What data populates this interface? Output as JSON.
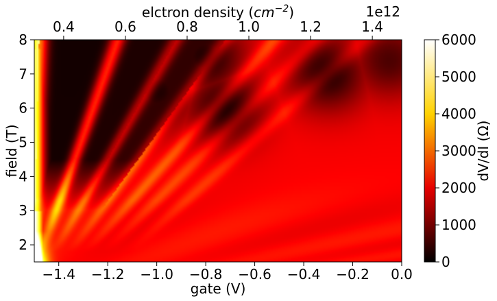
{
  "chart_data": {
    "type": "heatmap",
    "xlabel": "gate (V)",
    "ylabel": "field (T)",
    "top_xlabel_prefix": "elctron density (",
    "top_xlabel_unit_base": "cm",
    "top_xlabel_unit_exp": "−2",
    "top_xlabel_suffix": ")",
    "top_axis_multiplier": "1e12",
    "colorbar_label": "dV/dI (Ω)",
    "xlim": [
      -1.5,
      0.0
    ],
    "ylim": [
      1.5,
      8.0
    ],
    "xticks": [
      -1.4,
      -1.2,
      -1.0,
      -0.8,
      -0.6,
      -0.4,
      -0.2,
      0.0
    ],
    "xtick_labels": [
      "−1.4",
      "−1.2",
      "−1.0",
      "−0.8",
      "−0.6",
      "−0.4",
      "−0.2",
      "0.0"
    ],
    "yticks": [
      2,
      3,
      4,
      5,
      6,
      7,
      8
    ],
    "ytick_labels": [
      "2",
      "3",
      "4",
      "5",
      "6",
      "7",
      "8"
    ],
    "top_ticks": [
      0.4,
      0.6,
      0.8,
      1.0,
      1.2,
      1.4
    ],
    "top_tick_labels": [
      "0.4",
      "0.6",
      "0.8",
      "1.0",
      "1.2",
      "1.4"
    ],
    "top_axis_gate_at_density": [
      [
        0.4,
        -1.38
      ],
      [
        1.4,
        -0.12
      ]
    ],
    "colorbar_range": [
      0,
      6000
    ],
    "colorbar_ticks": [
      0,
      1000,
      2000,
      3000,
      4000,
      5000,
      6000
    ],
    "colorbar_tick_labels": [
      "0",
      "1000",
      "2000",
      "3000",
      "4000",
      "5000",
      "6000"
    ],
    "colormap": "hot",
    "colormap_stops": [
      "#000000",
      "#e60000",
      "#ffd200",
      "#ffffff"
    ],
    "grid": false,
    "features": {
      "background_resistance_low_field": 2300,
      "background_resistance_high_field": 2100,
      "hot_corner_peak": 6000,
      "quantum_hall_fans": [
        {
          "gate_at_8T": -1.48,
          "gate_at_2T": -1.5,
          "peak": 5200,
          "width_V": 0.03
        },
        {
          "gate_at_8T": -1.16,
          "gate_at_2T": -1.46,
          "peak": 4300,
          "width_V": 0.028
        },
        {
          "gate_at_8T": -0.92,
          "gate_at_2T": -1.4,
          "peak": 3300,
          "width_V": 0.028
        },
        {
          "gate_at_8T": -0.72,
          "gate_at_2T": -1.33,
          "peak": 3000,
          "width_V": 0.03
        },
        {
          "gate_at_8T": -0.52,
          "gate_at_2T": -1.26,
          "peak": 2900,
          "width_V": 0.035
        },
        {
          "gate_at_8T": -0.35,
          "gate_at_2T": -1.18,
          "peak": 2700,
          "width_V": 0.04
        },
        {
          "gate_at_8T": -0.15,
          "gate_at_2T": -1.08,
          "peak": 2600,
          "width_V": 0.045
        }
      ],
      "low_resistance_pockets": [
        {
          "gate": -1.3,
          "field": 6.0,
          "value": 200
        },
        {
          "gate": -1.0,
          "field": 6.5,
          "value": 250
        },
        {
          "gate": -0.72,
          "field": 6.0,
          "value": 300
        },
        {
          "gate": -0.8,
          "field": 7.5,
          "value": 250
        },
        {
          "gate": -0.3,
          "field": 7.0,
          "value": 300
        },
        {
          "gate": -0.05,
          "field": 7.4,
          "value": 700
        }
      ]
    }
  }
}
